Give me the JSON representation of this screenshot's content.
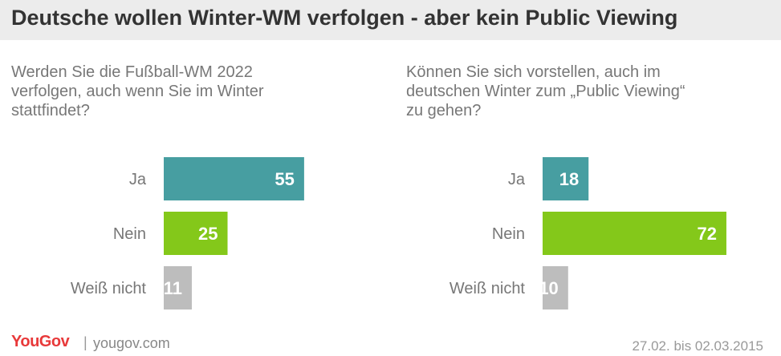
{
  "header": {
    "title": "Deutsche wollen Winter-WM verfolgen - aber kein Public Viewing"
  },
  "colors": {
    "ja": "#479ea1",
    "nein": "#84c81a",
    "weiss_nicht": "#bdbdbd",
    "label_text": "#ffffff",
    "category_text": "#777777"
  },
  "chart_data": [
    {
      "type": "bar",
      "orientation": "horizontal",
      "title": "Werden Sie die Fußball-WM 2022\nverfolgen, auch wenn Sie im Winter\nstattfindet?",
      "categories": [
        "Ja",
        "Nein",
        "Weiß nicht"
      ],
      "values": [
        55,
        25,
        11
      ],
      "xlim": [
        0,
        100
      ]
    },
    {
      "type": "bar",
      "orientation": "horizontal",
      "title": "Können Sie sich vorstellen, auch im\ndeutschen Winter zum „Public Viewing“\nzu gehen?",
      "categories": [
        "Ja",
        "Nein",
        "Weiß nicht"
      ],
      "values": [
        18,
        72,
        10
      ],
      "xlim": [
        0,
        100
      ]
    }
  ],
  "footer": {
    "logo": "YouGov",
    "separator": "|",
    "site": "yougov.com",
    "date": "27.02. bis 02.03.2015"
  }
}
